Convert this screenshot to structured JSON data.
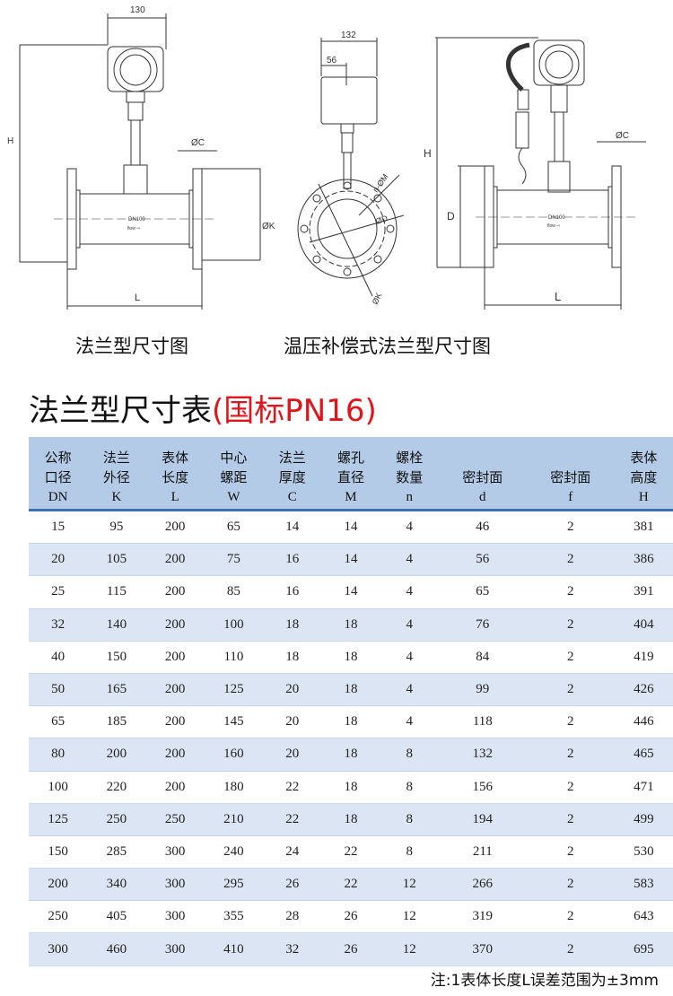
{
  "drawings": {
    "flange": {
      "width_dim": "130",
      "height_label": "H",
      "c_label": "ØC",
      "k_label": "ØK",
      "l_label": "L",
      "nameplate": "DN100",
      "flow": "flow ⇨",
      "caption": "法兰型尺寸图"
    },
    "side": {
      "width_dim": "132",
      "offset_dim": "56",
      "holes_label": "n-ØM",
      "d_label": "ØD",
      "k_label": "ØK"
    },
    "compensated": {
      "height_label": "H",
      "c_label": "ØC",
      "d_label": "D",
      "l_label": "L",
      "nameplate": "DN100",
      "flow": "flow ⇨",
      "caption": "温压补偿式法兰型尺寸图"
    }
  },
  "table_title": {
    "main": "法兰型尺寸表",
    "sub": "(国标PN16)",
    "sub_color": "#e0141b"
  },
  "table": {
    "headers": [
      {
        "l1": "公称",
        "l2": "口径",
        "sym": "DN"
      },
      {
        "l1": "法兰",
        "l2": "外径",
        "sym": "K"
      },
      {
        "l1": "表体",
        "l2": "长度",
        "sym": "L"
      },
      {
        "l1": "中心",
        "l2": "螺距",
        "sym": "W"
      },
      {
        "l1": "法兰",
        "l2": "厚度",
        "sym": "C"
      },
      {
        "l1": "螺孔",
        "l2": "直径",
        "sym": "M"
      },
      {
        "l1": "螺栓",
        "l2": "数量",
        "sym": "n"
      },
      {
        "l1": "",
        "l2": "密封面",
        "sym": "d"
      },
      {
        "l1": "",
        "l2": "密封面",
        "sym": "f"
      },
      {
        "l1": "表体",
        "l2": "高度",
        "sym": "H"
      }
    ],
    "rows": [
      [
        "15",
        "95",
        "200",
        "65",
        "14",
        "14",
        "4",
        "46",
        "2",
        "381"
      ],
      [
        "20",
        "105",
        "200",
        "75",
        "16",
        "14",
        "4",
        "56",
        "2",
        "386"
      ],
      [
        "25",
        "115",
        "200",
        "85",
        "16",
        "14",
        "4",
        "65",
        "2",
        "391"
      ],
      [
        "32",
        "140",
        "200",
        "100",
        "18",
        "18",
        "4",
        "76",
        "2",
        "404"
      ],
      [
        "40",
        "150",
        "200",
        "110",
        "18",
        "18",
        "4",
        "84",
        "2",
        "419"
      ],
      [
        "50",
        "165",
        "200",
        "125",
        "20",
        "18",
        "4",
        "99",
        "2",
        "426"
      ],
      [
        "65",
        "185",
        "200",
        "145",
        "20",
        "18",
        "4",
        "118",
        "2",
        "446"
      ],
      [
        "80",
        "200",
        "200",
        "160",
        "20",
        "18",
        "8",
        "132",
        "2",
        "465"
      ],
      [
        "100",
        "220",
        "200",
        "180",
        "22",
        "18",
        "8",
        "156",
        "2",
        "471"
      ],
      [
        "125",
        "250",
        "250",
        "210",
        "22",
        "18",
        "8",
        "194",
        "2",
        "499"
      ],
      [
        "150",
        "285",
        "300",
        "240",
        "24",
        "22",
        "8",
        "211",
        "2",
        "530"
      ],
      [
        "200",
        "340",
        "300",
        "295",
        "26",
        "22",
        "12",
        "266",
        "2",
        "583"
      ],
      [
        "250",
        "405",
        "300",
        "355",
        "28",
        "26",
        "12",
        "319",
        "2",
        "643"
      ],
      [
        "300",
        "460",
        "300",
        "410",
        "32",
        "26",
        "12",
        "370",
        "2",
        "695"
      ]
    ],
    "header_bg": "#b3cbe6",
    "alt_row_bg": "#dbe5f3"
  },
  "note": "注:1表体长度L误差范围为±3mm"
}
